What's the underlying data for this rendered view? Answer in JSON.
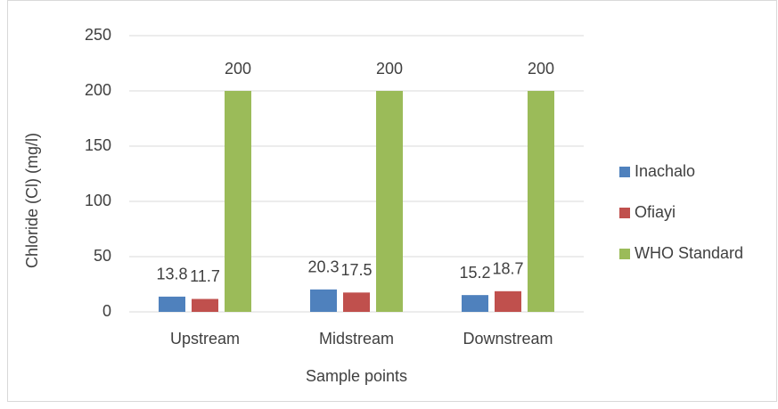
{
  "chart_data": {
    "type": "bar",
    "categories": [
      "Upstream",
      "Midstream",
      "Downstream"
    ],
    "series": [
      {
        "name": "Inachalo",
        "color": "#4f81bd",
        "values": [
          13.8,
          20.3,
          15.2
        ]
      },
      {
        "name": "Ofiayi",
        "color": "#c0504d",
        "values": [
          11.7,
          17.5,
          18.7
        ]
      },
      {
        "name": "WHO Standard",
        "color": "#9bbb59",
        "values": [
          200,
          200,
          200
        ]
      }
    ],
    "xlabel": "Sample points",
    "ylabel": "Chloride (Cl) (mg/l)",
    "ylim": [
      0,
      250
    ],
    "yticks": [
      0,
      50,
      100,
      150,
      200,
      250
    ],
    "grid": true,
    "legend": "right"
  }
}
